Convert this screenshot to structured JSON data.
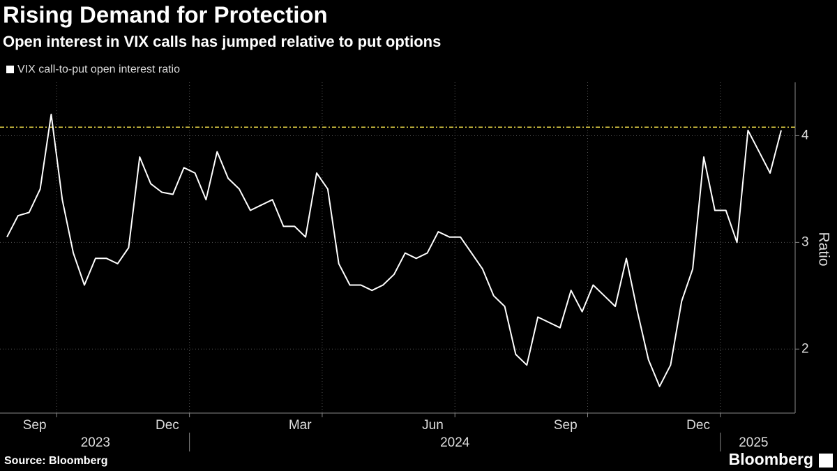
{
  "chart_data": {
    "type": "line",
    "title": "Rising Demand for Protection",
    "subtitle": "Open interest in VIX calls has jumped relative to put options",
    "y_axis_label": "Ratio",
    "source": "Source: Bloomberg",
    "brand": "Bloomberg",
    "x": [
      "2023-08",
      "2023-09",
      "2023-09",
      "2023-09",
      "2023-09",
      "2023-10",
      "2023-10",
      "2023-10",
      "2023-10",
      "2023-11",
      "2023-11",
      "2023-11",
      "2023-11",
      "2023-12",
      "2023-12",
      "2023-12",
      "2023-12",
      "2024-01",
      "2024-01",
      "2024-01",
      "2024-01",
      "2024-02",
      "2024-02",
      "2024-02",
      "2024-02",
      "2024-03",
      "2024-03",
      "2024-03",
      "2024-03",
      "2024-04",
      "2024-04",
      "2024-04",
      "2024-04",
      "2024-05",
      "2024-05",
      "2024-05",
      "2024-05",
      "2024-06",
      "2024-06",
      "2024-06",
      "2024-06",
      "2024-07",
      "2024-07",
      "2024-07",
      "2024-07",
      "2024-08",
      "2024-08",
      "2024-08",
      "2024-08",
      "2024-09",
      "2024-09",
      "2024-09",
      "2024-09",
      "2024-10",
      "2024-10",
      "2024-10",
      "2024-10",
      "2024-11",
      "2024-11",
      "2024-11",
      "2024-11",
      "2024-12",
      "2024-12",
      "2024-12",
      "2024-12",
      "2025-01",
      "2025-01",
      "2025-01",
      "2025-01",
      "2025-02",
      "2025-02"
    ],
    "series": [
      {
        "name": "VIX call-to-put open interest ratio",
        "color": "#ffffff",
        "values": [
          3.05,
          3.25,
          3.28,
          3.5,
          4.2,
          3.4,
          2.9,
          2.6,
          2.85,
          2.85,
          2.8,
          2.95,
          3.8,
          3.55,
          3.47,
          3.45,
          3.7,
          3.65,
          3.4,
          3.85,
          3.6,
          3.5,
          3.3,
          3.35,
          3.4,
          3.15,
          3.15,
          3.05,
          3.65,
          3.5,
          2.8,
          2.6,
          2.6,
          2.55,
          2.6,
          2.7,
          2.9,
          2.85,
          2.9,
          3.1,
          3.05,
          3.05,
          2.9,
          2.75,
          2.5,
          2.4,
          1.95,
          1.85,
          2.3,
          2.25,
          2.2,
          2.55,
          2.35,
          2.6,
          2.5,
          2.4,
          2.85,
          2.35,
          1.9,
          1.65,
          1.85,
          2.45,
          2.75,
          3.8,
          3.3,
          3.3,
          3.0,
          4.05,
          3.85,
          3.65,
          4.05
        ]
      }
    ],
    "xticks": [
      {
        "value": "2023-09",
        "label": "Sep"
      },
      {
        "value": "2023-12",
        "label": "Dec"
      },
      {
        "value": "2024-03",
        "label": "Mar"
      },
      {
        "value": "2024-06",
        "label": "Jun"
      },
      {
        "value": "2024-09",
        "label": "Sep"
      },
      {
        "value": "2024-12",
        "label": "Dec"
      }
    ],
    "year_labels": [
      "2023",
      "2024",
      "2025"
    ],
    "ylim": [
      1.4,
      4.5
    ],
    "yticks": [
      2,
      3,
      4
    ],
    "y_axis_side": "right",
    "grid": true,
    "reference_line": {
      "value": 4.08,
      "color": "#e6d447"
    }
  }
}
